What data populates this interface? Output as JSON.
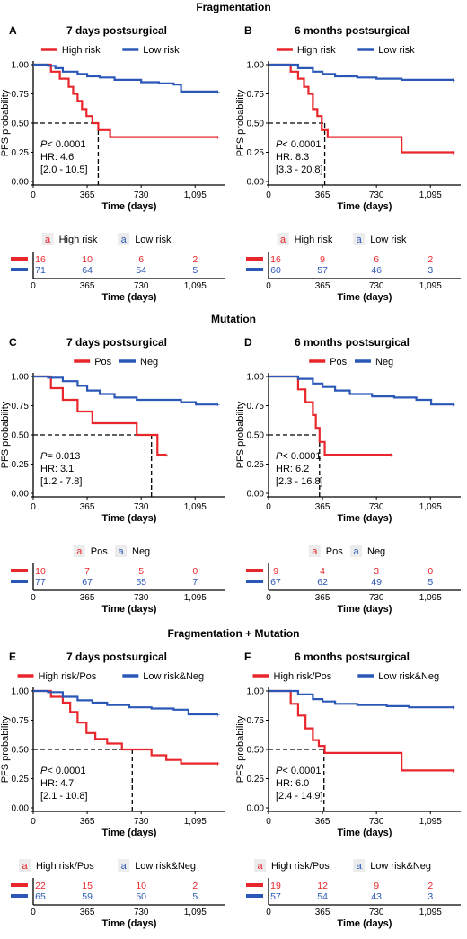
{
  "colors": {
    "high": "#e8262b",
    "low": "#2b58b7",
    "axis": "#000000"
  },
  "x_axis": {
    "label": "Time (days)",
    "ticks": [
      "0",
      "365",
      "730",
      "1,095"
    ],
    "tick_values": [
      0,
      365,
      730,
      1095
    ],
    "xlim": [
      0,
      1300
    ]
  },
  "y_axis": {
    "label": "PFS probability",
    "ticks": [
      "0.00",
      "0.25",
      "0.50",
      "0.75",
      "1.00"
    ],
    "tick_values": [
      0,
      0.25,
      0.5,
      0.75,
      1.0
    ],
    "ylim": [
      0,
      1
    ]
  },
  "risk_table_letter": "a",
  "sections": [
    {
      "title": "Fragmentation",
      "panels": [
        {
          "letter": "A",
          "subtitle": "7 days postsurgical",
          "legend": [
            "High risk",
            "Low risk"
          ],
          "stats": {
            "p_label": "P",
            "p_value": "< 0.0001",
            "hr": "HR: 4.6",
            "ci": "[2.0 - 10.5]"
          },
          "median_x": 440,
          "risk_table": {
            "high": [
              "16",
              "10",
              "6",
              "2"
            ],
            "low": [
              "71",
              "64",
              "54",
              "5"
            ]
          }
        },
        {
          "letter": "B",
          "subtitle": "6 months postsurgical",
          "legend": [
            "High risk",
            "Low risk"
          ],
          "stats": {
            "p_label": "P",
            "p_value": "< 0.0001",
            "hr": "HR: 8.3",
            "ci": "[3.3 - 20.8]"
          },
          "median_x": 380,
          "risk_table": {
            "high": [
              "16",
              "9",
              "6",
              "2"
            ],
            "low": [
              "60",
              "57",
              "46",
              "3"
            ]
          }
        }
      ]
    },
    {
      "title": "Mutation",
      "panels": [
        {
          "letter": "C",
          "subtitle": "7 days postsurgical",
          "legend": [
            "Pos",
            "Neg"
          ],
          "stats": {
            "p_label": "P",
            "p_value": "= 0.013",
            "hr": "HR: 3.1",
            "ci": "[1.2 - 7.8]"
          },
          "median_x": 800,
          "risk_table": {
            "high": [
              "10",
              "7",
              "5",
              "0"
            ],
            "low": [
              "77",
              "67",
              "55",
              "7"
            ]
          }
        },
        {
          "letter": "D",
          "subtitle": "6 months postsurgical",
          "legend": [
            "Pos",
            "Neg"
          ],
          "stats": {
            "p_label": "P",
            "p_value": "< 0.0001",
            "hr": "HR: 6.2",
            "ci": "[2.3 - 16.8]"
          },
          "median_x": 345,
          "risk_table": {
            "high": [
              "9",
              "4",
              "3",
              "0"
            ],
            "low": [
              "67",
              "62",
              "49",
              "5"
            ]
          }
        }
      ]
    },
    {
      "title": "Fragmentation + Mutation",
      "panels": [
        {
          "letter": "E",
          "subtitle": "7 days postsurgical",
          "legend": [
            "High risk/Pos",
            "Low risk&Neg"
          ],
          "stats": {
            "p_label": "P",
            "p_value": "< 0.0001",
            "hr": "HR: 4.7",
            "ci": "[2.1 - 10.8]"
          },
          "median_x": 670,
          "risk_table": {
            "high": [
              "22",
              "15",
              "10",
              "2"
            ],
            "low": [
              "65",
              "59",
              "50",
              "5"
            ]
          }
        },
        {
          "letter": "F",
          "subtitle": "6 months postsurgical",
          "legend": [
            "High risk/Pos",
            "Low risk&Neg"
          ],
          "stats": {
            "p_label": "P",
            "p_value": "< 0.0001",
            "hr": "HR: 6.0",
            "ci": "[2.4 - 14.9]"
          },
          "median_x": 375,
          "risk_table": {
            "high": [
              "19",
              "12",
              "9",
              "2"
            ],
            "low": [
              "57",
              "54",
              "43",
              "3"
            ]
          }
        }
      ]
    }
  ],
  "chart_data": [
    {
      "type": "line",
      "panel": "A",
      "series": [
        {
          "name": "High risk",
          "x": [
            0,
            120,
            180,
            240,
            270,
            300,
            330,
            360,
            400,
            440,
            520,
            600,
            730,
            900,
            1095,
            1250
          ],
          "y": [
            1,
            0.94,
            0.88,
            0.81,
            0.75,
            0.69,
            0.62,
            0.56,
            0.5,
            0.44,
            0.38,
            0.38,
            0.38,
            0.38,
            0.38,
            0.38
          ]
        },
        {
          "name": "Low risk",
          "x": [
            0,
            100,
            150,
            200,
            300,
            365,
            450,
            550,
            730,
            850,
            950,
            1000,
            1095,
            1250
          ],
          "y": [
            1,
            0.99,
            0.97,
            0.94,
            0.92,
            0.9,
            0.89,
            0.87,
            0.85,
            0.84,
            0.83,
            0.77,
            0.77,
            0.77
          ]
        }
      ]
    },
    {
      "type": "line",
      "panel": "B",
      "series": [
        {
          "name": "High risk",
          "x": [
            0,
            150,
            200,
            240,
            270,
            300,
            330,
            360,
            400,
            440,
            600,
            800,
            900,
            1095,
            1250
          ],
          "y": [
            1,
            0.94,
            0.88,
            0.81,
            0.75,
            0.62,
            0.56,
            0.44,
            0.38,
            0.38,
            0.38,
            0.38,
            0.25,
            0.25,
            0.25
          ]
        },
        {
          "name": "Low risk",
          "x": [
            0,
            100,
            200,
            300,
            365,
            450,
            600,
            730,
            900,
            1095,
            1250
          ],
          "y": [
            1,
            1,
            0.97,
            0.94,
            0.92,
            0.9,
            0.89,
            0.88,
            0.87,
            0.87,
            0.87
          ]
        }
      ]
    },
    {
      "type": "line",
      "panel": "C",
      "series": [
        {
          "name": "Pos",
          "x": [
            0,
            120,
            200,
            300,
            400,
            600,
            700,
            800,
            840,
            900
          ],
          "y": [
            1,
            0.9,
            0.8,
            0.7,
            0.6,
            0.6,
            0.5,
            0.5,
            0.33,
            0.33
          ]
        },
        {
          "name": "Neg",
          "x": [
            0,
            100,
            200,
            300,
            365,
            450,
            550,
            700,
            1000,
            1100,
            1250
          ],
          "y": [
            1,
            0.99,
            0.96,
            0.92,
            0.88,
            0.85,
            0.82,
            0.8,
            0.78,
            0.76,
            0.76
          ]
        }
      ]
    },
    {
      "type": "line",
      "panel": "D",
      "series": [
        {
          "name": "Pos",
          "x": [
            0,
            200,
            250,
            300,
            320,
            345,
            380,
            600,
            830
          ],
          "y": [
            1,
            0.89,
            0.78,
            0.67,
            0.56,
            0.44,
            0.33,
            0.33,
            0.33
          ]
        },
        {
          "name": "Neg",
          "x": [
            0,
            100,
            200,
            300,
            365,
            450,
            550,
            700,
            850,
            1000,
            1100,
            1250
          ],
          "y": [
            1,
            1,
            0.98,
            0.94,
            0.91,
            0.88,
            0.85,
            0.83,
            0.82,
            0.8,
            0.76,
            0.76
          ]
        }
      ]
    },
    {
      "type": "line",
      "panel": "E",
      "series": [
        {
          "name": "High risk/Pos",
          "x": [
            0,
            120,
            200,
            250,
            300,
            360,
            420,
            500,
            600,
            700,
            800,
            900,
            1000,
            1095,
            1250
          ],
          "y": [
            1,
            0.95,
            0.9,
            0.82,
            0.73,
            0.64,
            0.59,
            0.55,
            0.5,
            0.5,
            0.45,
            0.41,
            0.38,
            0.38,
            0.38
          ]
        },
        {
          "name": "Low risk&Neg",
          "x": [
            0,
            100,
            200,
            300,
            400,
            500,
            650,
            800,
            950,
            1050,
            1250
          ],
          "y": [
            1,
            0.99,
            0.95,
            0.92,
            0.9,
            0.88,
            0.86,
            0.85,
            0.84,
            0.8,
            0.8
          ]
        }
      ]
    },
    {
      "type": "line",
      "panel": "F",
      "series": [
        {
          "name": "High risk/Pos",
          "x": [
            0,
            150,
            200,
            250,
            300,
            340,
            380,
            450,
            700,
            900,
            1095,
            1250
          ],
          "y": [
            1,
            0.89,
            0.79,
            0.68,
            0.58,
            0.53,
            0.47,
            0.47,
            0.47,
            0.32,
            0.32,
            0.32
          ]
        },
        {
          "name": "Low risk&Neg",
          "x": [
            0,
            100,
            200,
            300,
            365,
            450,
            600,
            800,
            950,
            1095,
            1250
          ],
          "y": [
            1,
            1,
            0.97,
            0.93,
            0.91,
            0.89,
            0.88,
            0.87,
            0.86,
            0.86,
            0.86
          ]
        }
      ]
    }
  ]
}
